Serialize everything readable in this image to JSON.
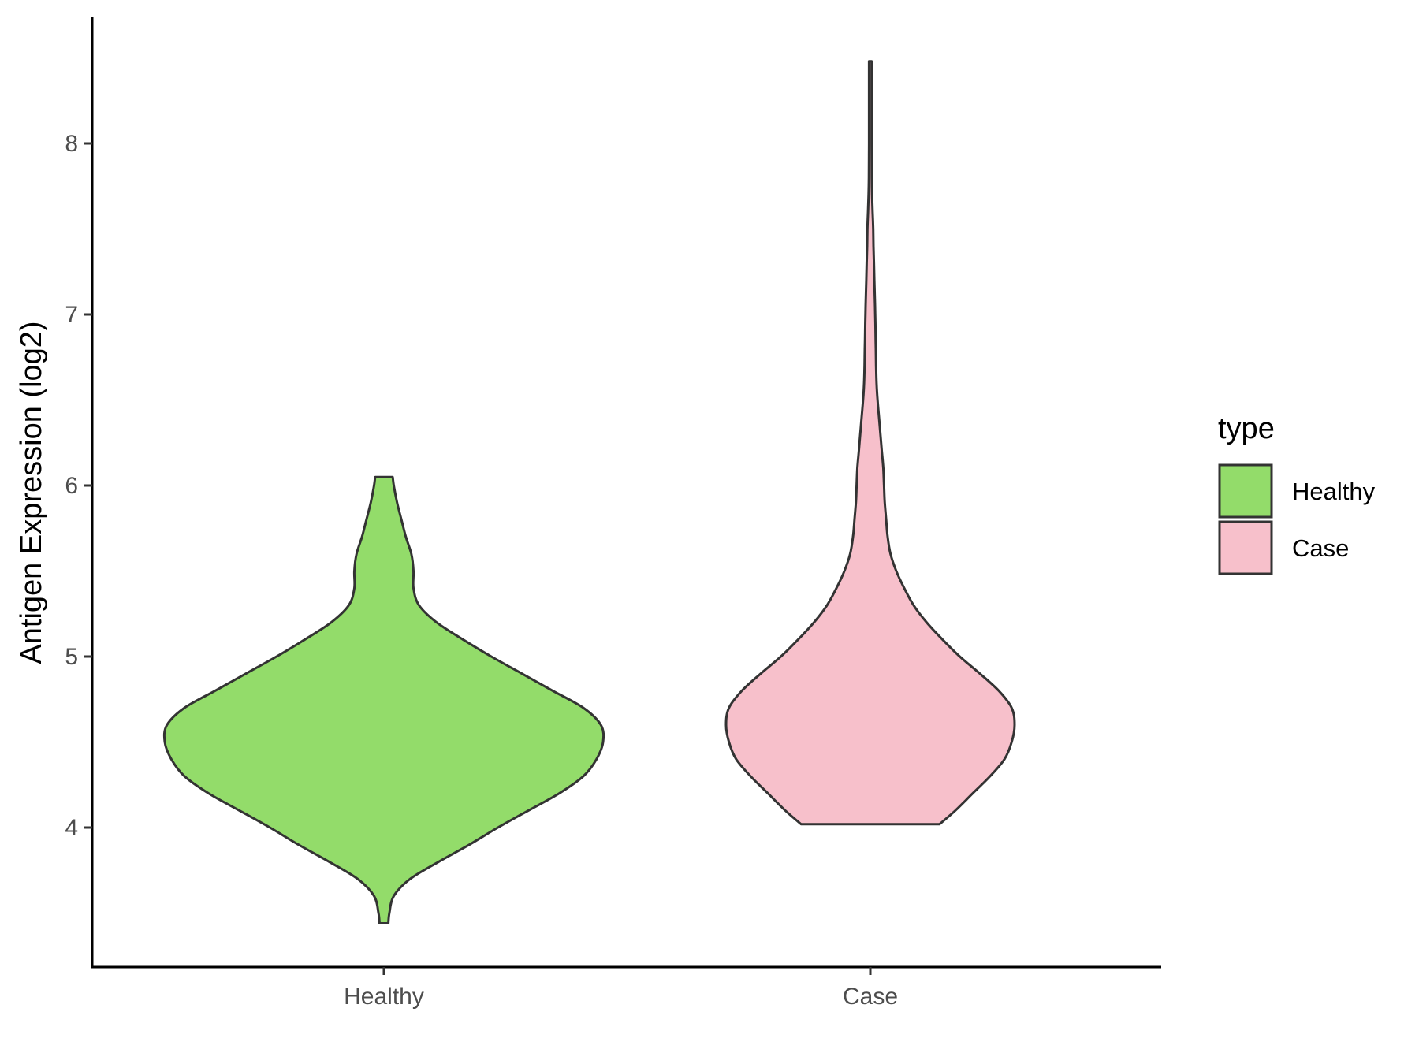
{
  "chart_data": {
    "type": "violin",
    "title": "",
    "xlabel": "",
    "ylabel": "Antigen Expression (log2)",
    "categories": [
      "Healthy",
      "Case"
    ],
    "y_ticks": [
      4,
      5,
      6,
      7,
      8
    ],
    "y_tick_labels": [
      "4",
      "5",
      "6",
      "7",
      "8"
    ],
    "ylim": [
      3.2,
      8.7
    ],
    "grid": false,
    "legend": {
      "title": "type",
      "placement": "right",
      "entries": [
        {
          "label": "Healthy",
          "color": "#93DC6A"
        },
        {
          "label": "Case",
          "color": "#F7C0CB"
        }
      ]
    },
    "series": [
      {
        "category": "Healthy",
        "color": "#93DC6A",
        "min": 3.44,
        "max": 6.05,
        "density": [
          [
            3.44,
            0.02
          ],
          [
            3.5,
            0.025
          ],
          [
            3.6,
            0.045
          ],
          [
            3.7,
            0.12
          ],
          [
            3.8,
            0.25
          ],
          [
            3.9,
            0.39
          ],
          [
            4.0,
            0.52
          ],
          [
            4.1,
            0.66
          ],
          [
            4.2,
            0.8
          ],
          [
            4.3,
            0.91
          ],
          [
            4.4,
            0.97
          ],
          [
            4.5,
            1.0
          ],
          [
            4.6,
            0.99
          ],
          [
            4.7,
            0.91
          ],
          [
            4.8,
            0.77
          ],
          [
            4.9,
            0.63
          ],
          [
            5.0,
            0.49
          ],
          [
            5.1,
            0.36
          ],
          [
            5.2,
            0.24
          ],
          [
            5.3,
            0.16
          ],
          [
            5.4,
            0.135
          ],
          [
            5.5,
            0.135
          ],
          [
            5.6,
            0.125
          ],
          [
            5.7,
            0.1
          ],
          [
            5.8,
            0.08
          ],
          [
            5.9,
            0.06
          ],
          [
            6.0,
            0.045
          ],
          [
            6.05,
            0.04
          ]
        ]
      },
      {
        "category": "Case",
        "color": "#F7C0CB",
        "min": 4.02,
        "max": 8.48,
        "density": [
          [
            4.02,
            0.48
          ],
          [
            4.1,
            0.59
          ],
          [
            4.2,
            0.71
          ],
          [
            4.3,
            0.83
          ],
          [
            4.4,
            0.93
          ],
          [
            4.5,
            0.98
          ],
          [
            4.6,
            1.0
          ],
          [
            4.7,
            0.98
          ],
          [
            4.8,
            0.89
          ],
          [
            4.9,
            0.76
          ],
          [
            5.0,
            0.62
          ],
          [
            5.1,
            0.5
          ],
          [
            5.2,
            0.39
          ],
          [
            5.3,
            0.3
          ],
          [
            5.4,
            0.235
          ],
          [
            5.5,
            0.18
          ],
          [
            5.6,
            0.14
          ],
          [
            5.7,
            0.12
          ],
          [
            5.8,
            0.11
          ],
          [
            5.9,
            0.1
          ],
          [
            6.0,
            0.095
          ],
          [
            6.1,
            0.09
          ],
          [
            6.2,
            0.08
          ],
          [
            6.3,
            0.07
          ],
          [
            6.4,
            0.06
          ],
          [
            6.5,
            0.05
          ],
          [
            6.6,
            0.043
          ],
          [
            6.7,
            0.04
          ],
          [
            6.8,
            0.038
          ],
          [
            6.9,
            0.036
          ],
          [
            7.0,
            0.034
          ],
          [
            7.1,
            0.031
          ],
          [
            7.2,
            0.028
          ],
          [
            7.3,
            0.025
          ],
          [
            7.4,
            0.022
          ],
          [
            7.5,
            0.02
          ],
          [
            7.6,
            0.016
          ],
          [
            7.7,
            0.012
          ],
          [
            7.8,
            0.01
          ],
          [
            8.0,
            0.009
          ],
          [
            8.2,
            0.009
          ],
          [
            8.4,
            0.009
          ],
          [
            8.48,
            0.009
          ]
        ]
      }
    ]
  }
}
